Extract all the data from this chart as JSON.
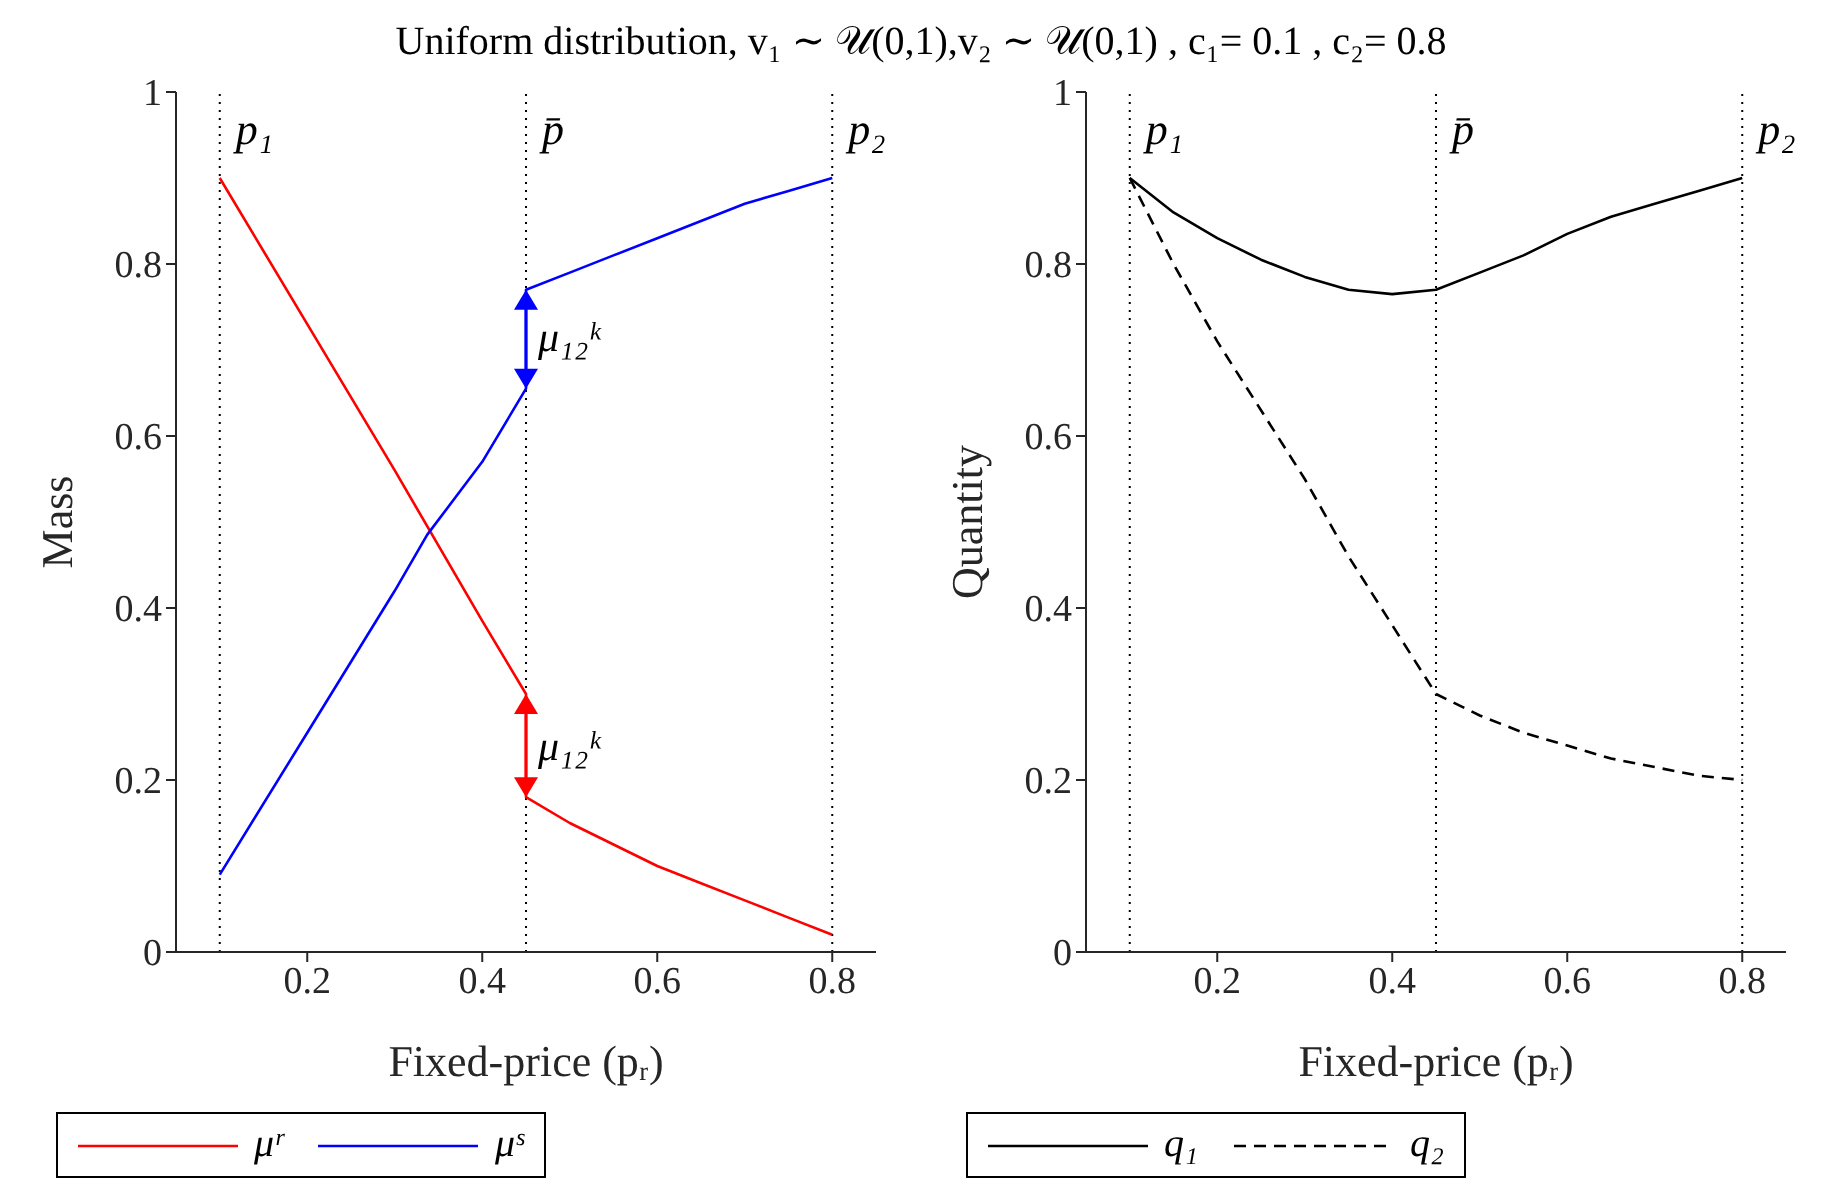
{
  "chart_data": [
    {
      "type": "line",
      "title": "Uniform distribution, v₁ ∼ 𝒰(0,1),v₂ ∼ 𝒰(0,1) , c₁= 0.1 , c₂= 0.8",
      "xlabel": "Fixed-price (pᵣ)",
      "ylabel": "Mass",
      "xlim": [
        0.05,
        0.85
      ],
      "xticks": [
        0.2,
        0.4,
        0.6,
        0.8
      ],
      "ylim": [
        0,
        1
      ],
      "yticks": [
        0,
        0.2,
        0.4,
        0.6,
        0.8,
        1
      ],
      "legend": "bottom",
      "marker": "none",
      "series": [
        {
          "name": "μʳ",
          "color": "#ff0000",
          "line_style": "solid",
          "x": [
            0.1,
            0.2,
            0.3,
            0.4,
            0.45,
            0.45,
            0.5,
            0.55,
            0.6,
            0.65,
            0.7,
            0.75,
            0.8
          ],
          "values": [
            0.9,
            0.73,
            0.56,
            0.385,
            0.3,
            0.18,
            0.15,
            0.125,
            0.1,
            0.08,
            0.06,
            0.04,
            0.02
          ]
        },
        {
          "name": "μˢ",
          "color": "#0000ff",
          "line_style": "solid",
          "x": [
            0.1,
            0.2,
            0.3,
            0.337,
            0.4,
            0.45,
            0.45,
            0.5,
            0.55,
            0.6,
            0.65,
            0.7,
            0.75,
            0.8
          ],
          "values": [
            0.09,
            0.255,
            0.42,
            0.485,
            0.57,
            0.655,
            0.77,
            0.79,
            0.81,
            0.83,
            0.85,
            0.87,
            0.885,
            0.9
          ]
        }
      ],
      "ref_lines": [
        {
          "axis": "x",
          "value": 0.1,
          "label": "p₁",
          "color": "#000000",
          "line_style": "dotted"
        },
        {
          "axis": "x",
          "value": 0.45,
          "label": "p̄",
          "color": "#000000",
          "line_style": "dotted"
        },
        {
          "axis": "x",
          "value": 0.8,
          "label": "p₂",
          "color": "#000000",
          "line_style": "dotted"
        }
      ],
      "annotations": [
        {
          "text": "μ₁₂ᵏ",
          "x": 0.45,
          "y": 0.715
        },
        {
          "text": "μ₁₂ᵏ",
          "x": 0.45,
          "y": 0.24
        }
      ]
    },
    {
      "type": "line",
      "xlabel": "Fixed-price (pᵣ)",
      "ylabel": "Quantity",
      "xlim": [
        0.05,
        0.85
      ],
      "xticks": [
        0.2,
        0.4,
        0.6,
        0.8
      ],
      "ylim": [
        0,
        1
      ],
      "yticks": [
        0,
        0.2,
        0.4,
        0.6,
        0.8,
        1
      ],
      "legend": "bottom",
      "marker": "none",
      "series": [
        {
          "name": "q₁",
          "color": "#000000",
          "line_style": "solid",
          "x": [
            0.1,
            0.15,
            0.2,
            0.25,
            0.3,
            0.35,
            0.4,
            0.45,
            0.5,
            0.55,
            0.6,
            0.65,
            0.7,
            0.75,
            0.8
          ],
          "values": [
            0.9,
            0.86,
            0.83,
            0.805,
            0.785,
            0.77,
            0.765,
            0.77,
            0.79,
            0.81,
            0.835,
            0.855,
            0.87,
            0.885,
            0.9
          ]
        },
        {
          "name": "q₂",
          "color": "#000000",
          "line_style": "dashed",
          "x": [
            0.1,
            0.15,
            0.2,
            0.25,
            0.3,
            0.35,
            0.4,
            0.45,
            0.5,
            0.55,
            0.6,
            0.65,
            0.7,
            0.75,
            0.8
          ],
          "values": [
            0.9,
            0.8,
            0.71,
            0.63,
            0.55,
            0.46,
            0.38,
            0.3,
            0.275,
            0.255,
            0.24,
            0.225,
            0.215,
            0.205,
            0.2
          ]
        }
      ],
      "ref_lines": [
        {
          "axis": "x",
          "value": 0.1,
          "label": "p₁",
          "color": "#000000",
          "line_style": "dotted"
        },
        {
          "axis": "x",
          "value": 0.45,
          "label": "p̄",
          "color": "#000000",
          "line_style": "dotted"
        },
        {
          "axis": "x",
          "value": 0.8,
          "label": "p₂",
          "color": "#000000",
          "line_style": "dotted"
        }
      ]
    }
  ]
}
